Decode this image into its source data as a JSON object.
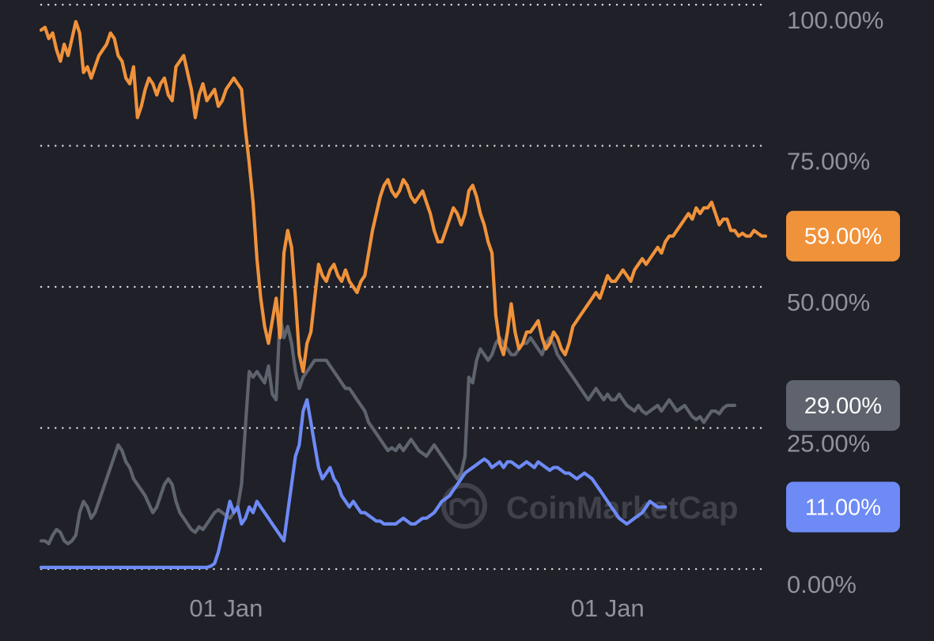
{
  "chart_data": {
    "type": "line",
    "title": "",
    "xlabel": "",
    "ylabel": "",
    "ylim": [
      0,
      100
    ],
    "y_ticks": [
      {
        "value": 100,
        "label": "100.00%"
      },
      {
        "value": 75,
        "label": "75.00%"
      },
      {
        "value": 50,
        "label": "50.00%"
      },
      {
        "value": 25,
        "label": "25.00%"
      },
      {
        "value": 0,
        "label": "0.00%"
      }
    ],
    "x_ticks": [
      {
        "index": 48,
        "label": "01 Jan"
      },
      {
        "index": 147,
        "label": "01 Jan"
      }
    ],
    "grid": "horizontal-dotted",
    "watermark": "CoinMarketCap",
    "legend": "none",
    "series": [
      {
        "color": "#f0923a",
        "last_label": "59.00%",
        "values": [
          95.5,
          96,
          94,
          95,
          92,
          90,
          93,
          91,
          94,
          97,
          95,
          88,
          89,
          87,
          89,
          91,
          92,
          93,
          95,
          94,
          91,
          90,
          87,
          86,
          89,
          80,
          82,
          85,
          87,
          86,
          84,
          86,
          87,
          84,
          83,
          89,
          90,
          91,
          88,
          85,
          80,
          84,
          86,
          83,
          84,
          85,
          82,
          83,
          85,
          86,
          87,
          86,
          85,
          78,
          72,
          65,
          55,
          48,
          43,
          40,
          44,
          48,
          41,
          56,
          60,
          57,
          48,
          38,
          35,
          40,
          42,
          48,
          54,
          52,
          51,
          53,
          54,
          52,
          51,
          53,
          51,
          50,
          49,
          51,
          52,
          56,
          60,
          63,
          66,
          68,
          69,
          67,
          66,
          67,
          69,
          68,
          66,
          65,
          66,
          67,
          65,
          63,
          60,
          58,
          58,
          60,
          62,
          64,
          63,
          61,
          63,
          67,
          68,
          66,
          63,
          61,
          58,
          56,
          45,
          40,
          38,
          42,
          47,
          42,
          39,
          40,
          42,
          42,
          43,
          44,
          41,
          39,
          40,
          42,
          41,
          39,
          38,
          40,
          43,
          44,
          45,
          46,
          47,
          48,
          49,
          48,
          50,
          52,
          51,
          51,
          52,
          53,
          52,
          51,
          53,
          54,
          55,
          54,
          55,
          56,
          57,
          56,
          58,
          59,
          59,
          60,
          61,
          62,
          63,
          62,
          64,
          63,
          64,
          64,
          65,
          63,
          61,
          62,
          62,
          60,
          60,
          59,
          59.5,
          59,
          59,
          60,
          59.5,
          59,
          59
        ]
      },
      {
        "color": "#5e636d",
        "last_label": "29.00%",
        "values": [
          5,
          5,
          4.5,
          6,
          7,
          6.5,
          5,
          4.5,
          5,
          6,
          10,
          12,
          11,
          9,
          10,
          12,
          14,
          16,
          18,
          20,
          22,
          21,
          19,
          18,
          16,
          15,
          14,
          13,
          11.5,
          10,
          11,
          13,
          15,
          16,
          15,
          12,
          10,
          9,
          8,
          7,
          6.5,
          7.5,
          7,
          8,
          9,
          10,
          10.5,
          10,
          9.5,
          9,
          10,
          11,
          15,
          25,
          35,
          34,
          35,
          34,
          33,
          36,
          31,
          30,
          45,
          41,
          43,
          40,
          35,
          32,
          34,
          35,
          36,
          37,
          37,
          37,
          37,
          36,
          35,
          34,
          33,
          32,
          32,
          31,
          30,
          29,
          28,
          26,
          25,
          24,
          23,
          22,
          21,
          21.5,
          21,
          22,
          21,
          22,
          23,
          22,
          21,
          20.5,
          20,
          21,
          22,
          21,
          20,
          19,
          18,
          17,
          16,
          17,
          20,
          34,
          33,
          37,
          39,
          38,
          37,
          38,
          40,
          41,
          40,
          39,
          38,
          38,
          39,
          40,
          40,
          41,
          40,
          39,
          38,
          40,
          41,
          40,
          38,
          37,
          36,
          35,
          34,
          33,
          32,
          31,
          30,
          31,
          32,
          31,
          30,
          31,
          30,
          30,
          31,
          30,
          29,
          28.5,
          28,
          29,
          28,
          27.5,
          28,
          28.5,
          29,
          28,
          29,
          30,
          29,
          28,
          28.5,
          29,
          28,
          27,
          26.5,
          27,
          26,
          27,
          28,
          28,
          27.5,
          28.5,
          29,
          29,
          29
        ]
      },
      {
        "color": "#6d8af5",
        "last_label": "11.00%",
        "values": [
          0.3,
          0.3,
          0.3,
          0.3,
          0.3,
          0.3,
          0.3,
          0.3,
          0.3,
          0.3,
          0.3,
          0.3,
          0.3,
          0.3,
          0.3,
          0.3,
          0.3,
          0.3,
          0.3,
          0.3,
          0.3,
          0.3,
          0.3,
          0.3,
          0.3,
          0.3,
          0.3,
          0.3,
          0.3,
          0.3,
          0.3,
          0.3,
          0.3,
          0.3,
          0.3,
          0.3,
          0.3,
          0.3,
          0.3,
          0.3,
          0.3,
          0.3,
          0.3,
          0.3,
          0.5,
          1,
          3,
          6,
          9,
          12,
          10,
          11,
          8,
          9,
          11,
          10,
          12,
          11,
          10,
          9,
          8,
          7,
          6,
          5,
          10,
          15,
          20,
          22,
          28,
          30,
          26,
          22,
          18,
          16,
          17,
          18,
          16,
          15,
          13,
          12,
          11,
          12,
          11,
          10,
          10,
          9.5,
          9,
          8.5,
          8.5,
          8,
          8,
          8,
          8,
          8.5,
          9,
          8.5,
          8,
          8,
          8.5,
          9,
          9,
          9.5,
          10,
          11,
          12,
          12.5,
          13,
          14,
          15,
          16,
          17,
          17.5,
          18,
          18.5,
          19,
          19.5,
          19,
          18,
          18.5,
          19,
          18,
          19,
          19,
          18.5,
          18,
          18.5,
          19,
          18.5,
          18,
          19,
          18.5,
          18,
          17.5,
          18,
          18,
          17.5,
          17,
          17,
          16.5,
          16,
          16.5,
          17,
          16.5,
          16,
          15,
          14,
          13,
          12,
          11,
          10,
          9,
          8.5,
          8,
          8.5,
          9,
          9.5,
          10,
          11,
          12,
          11.5,
          11,
          11,
          11
        ]
      }
    ]
  }
}
